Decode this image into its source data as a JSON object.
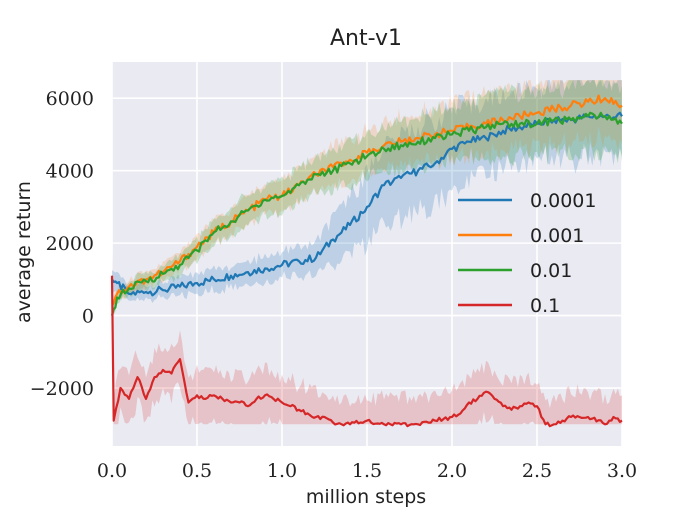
{
  "chart_data": {
    "type": "line",
    "title": "Ant-v1",
    "xlabel": "million steps",
    "ylabel": "average return",
    "xlim": [
      0.0,
      3.0
    ],
    "ylim": [
      -3600,
      7000
    ],
    "xticks": [
      0.0,
      0.5,
      1.0,
      1.5,
      2.0,
      2.5,
      3.0
    ],
    "xtick_labels": [
      "0.0",
      "0.5",
      "1.0",
      "1.5",
      "2.0",
      "2.5",
      "3.0"
    ],
    "yticks": [
      -2000,
      0,
      2000,
      4000,
      6000
    ],
    "ytick_labels": [
      "−2000",
      "0",
      "2000",
      "4000",
      "6000"
    ],
    "grid": true,
    "legend_position": "right",
    "series": [
      {
        "name": "0.0001",
        "color": "#1f77b4",
        "x": [
          0.0,
          0.03,
          0.1,
          0.2,
          0.3,
          0.4,
          0.5,
          0.6,
          0.7,
          0.8,
          0.9,
          1.0,
          1.1,
          1.2,
          1.3,
          1.4,
          1.5,
          1.6,
          1.7,
          1.8,
          1.9,
          2.0,
          2.1,
          2.2,
          2.3,
          2.4,
          2.5,
          2.6,
          2.7,
          2.8,
          2.9,
          3.0
        ],
        "y": [
          1000,
          900,
          600,
          650,
          700,
          800,
          900,
          1000,
          1100,
          1200,
          1300,
          1400,
          1500,
          1600,
          2100,
          2500,
          3000,
          3600,
          3800,
          4000,
          4200,
          4600,
          4800,
          4900,
          5100,
          5200,
          5300,
          5400,
          5400,
          5500,
          5500,
          5500
        ],
        "band": [
          300,
          300,
          200,
          200,
          200,
          250,
          300,
          300,
          300,
          300,
          350,
          350,
          400,
          400,
          600,
          800,
          1000,
          1100,
          1100,
          1200,
          1200,
          1100,
          1000,
          1000,
          1000,
          1000,
          1000,
          1000,
          1100,
          1100,
          1100,
          1100
        ]
      },
      {
        "name": "0.001",
        "color": "#ff7f0e",
        "x": [
          0.0,
          0.03,
          0.1,
          0.2,
          0.3,
          0.4,
          0.5,
          0.6,
          0.7,
          0.8,
          0.9,
          1.0,
          1.1,
          1.2,
          1.3,
          1.4,
          1.5,
          1.6,
          1.7,
          1.8,
          1.9,
          2.0,
          2.1,
          2.2,
          2.3,
          2.4,
          2.5,
          2.6,
          2.7,
          2.8,
          2.9,
          3.0
        ],
        "y": [
          300,
          600,
          800,
          1000,
          1200,
          1500,
          1900,
          2300,
          2600,
          2900,
          3200,
          3300,
          3600,
          3900,
          4100,
          4300,
          4500,
          4700,
          4800,
          4900,
          5000,
          5100,
          5200,
          5300,
          5400,
          5500,
          5600,
          5700,
          5800,
          5900,
          6000,
          5800
        ]
      },
      {
        "name": "0.01",
        "color": "#2ca02c",
        "x": [
          0.0,
          0.03,
          0.1,
          0.2,
          0.3,
          0.4,
          0.5,
          0.6,
          0.7,
          0.8,
          0.9,
          1.0,
          1.1,
          1.2,
          1.3,
          1.4,
          1.5,
          1.6,
          1.7,
          1.8,
          1.9,
          2.0,
          2.1,
          2.2,
          2.3,
          2.4,
          2.5,
          2.6,
          2.7,
          2.8,
          2.9,
          3.0
        ],
        "y": [
          0,
          500,
          750,
          950,
          1150,
          1400,
          1800,
          2300,
          2600,
          2900,
          3200,
          3300,
          3600,
          3900,
          4000,
          4200,
          4400,
          4600,
          4700,
          4800,
          4900,
          5000,
          5100,
          5200,
          5300,
          5300,
          5300,
          5400,
          5400,
          5500,
          5500,
          5300
        ]
      },
      {
        "name": "0.1",
        "color": "#d62728",
        "x": [
          0.0,
          0.01,
          0.05,
          0.1,
          0.15,
          0.2,
          0.25,
          0.3,
          0.35,
          0.4,
          0.45,
          0.5,
          0.55,
          0.6,
          0.65,
          0.7,
          0.75,
          0.8,
          0.85,
          0.9,
          0.95,
          1.0,
          1.05,
          1.1,
          1.15,
          1.2,
          1.25,
          1.3,
          1.35,
          1.4,
          1.5,
          1.6,
          1.7,
          1.8,
          1.9,
          2.0,
          2.05,
          2.1,
          2.15,
          2.2,
          2.25,
          2.3,
          2.35,
          2.4,
          2.45,
          2.5,
          2.55,
          2.6,
          2.65,
          2.7,
          2.75,
          2.8,
          2.9,
          2.95,
          3.0
        ],
        "y": [
          1100,
          -2900,
          -2000,
          -2300,
          -1700,
          -2300,
          -1700,
          -1500,
          -1600,
          -1200,
          -2400,
          -2200,
          -2300,
          -2200,
          -2300,
          -2400,
          -2400,
          -2500,
          -2300,
          -2200,
          -2300,
          -2400,
          -2500,
          -2600,
          -2700,
          -2800,
          -2800,
          -2950,
          -3000,
          -3000,
          -2900,
          -3000,
          -3000,
          -3000,
          -2900,
          -2800,
          -2700,
          -2400,
          -2300,
          -2100,
          -2300,
          -2500,
          -2600,
          -2500,
          -2400,
          -2500,
          -3000,
          -3000,
          -2900,
          -2800,
          -2800,
          -2800,
          -3000,
          -2800,
          -2900
        ]
      }
    ]
  }
}
